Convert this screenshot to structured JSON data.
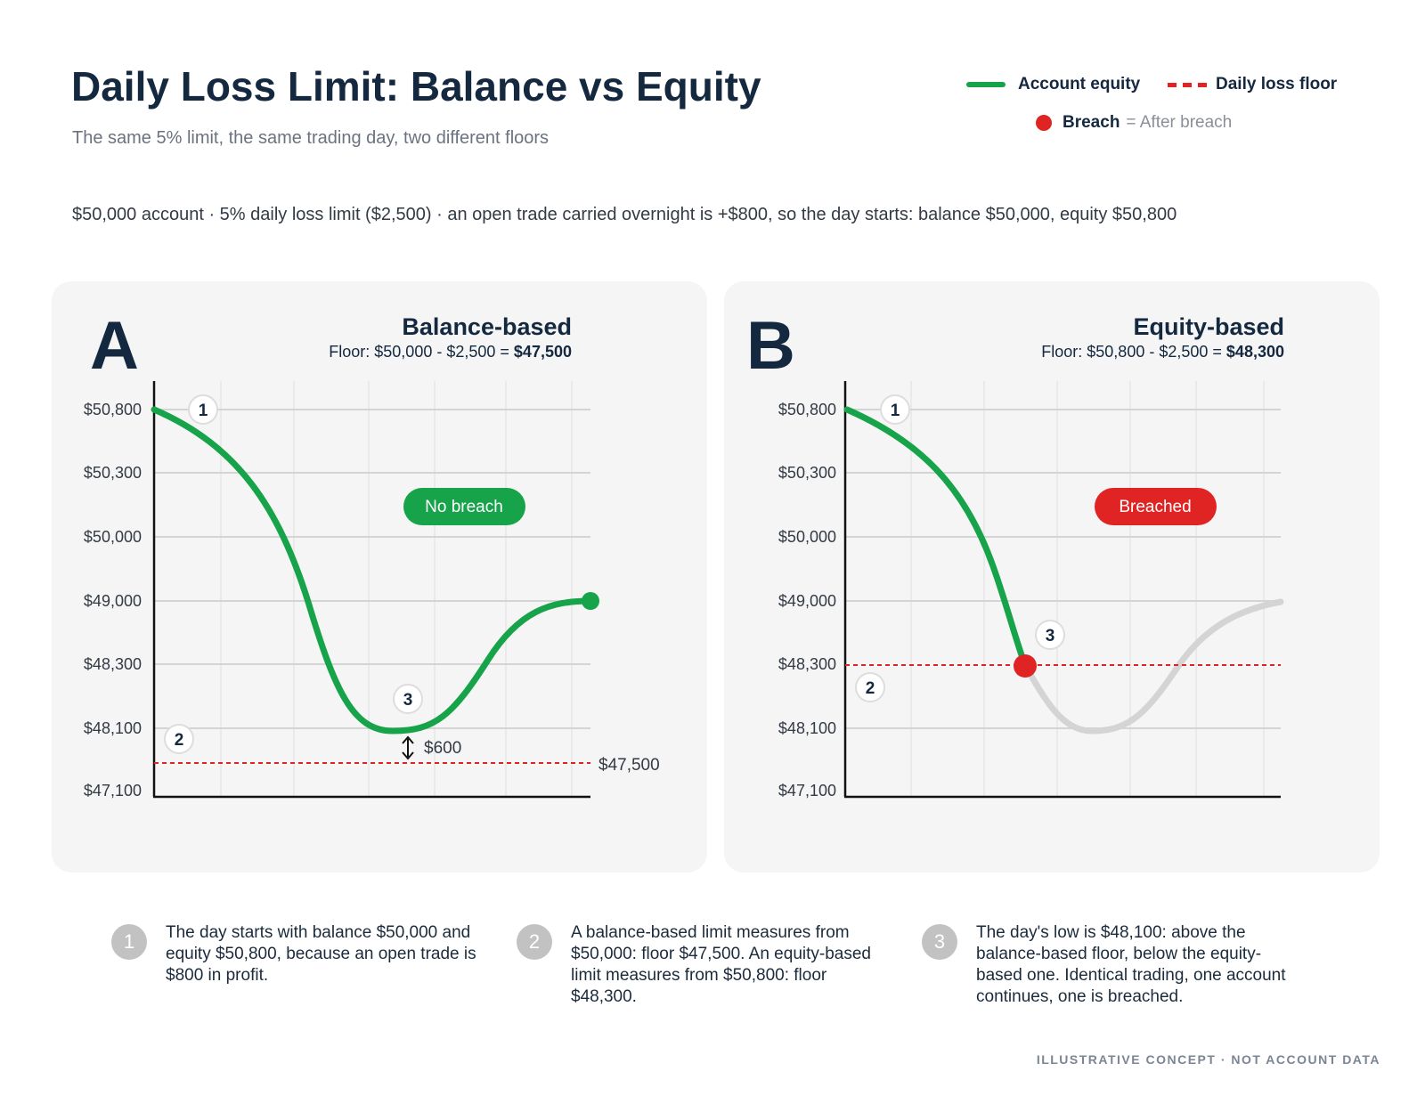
{
  "header": {
    "title": "Daily Loss Limit: Balance vs Equity",
    "subtitle": "The same 5% limit, the same trading day, two different floors",
    "context": "$50,000 account · 5% daily loss limit ($2,500) · an open trade carried overnight is +$800, so the day starts: balance $50,000, equity $50,800"
  },
  "legend": {
    "equity_label": "Account equity",
    "floor_label": "Daily loss floor",
    "breach_label": "Breach",
    "breach_note": "= After breach"
  },
  "colors": {
    "equity": "#16a34a",
    "floor": "#e02424",
    "breach": "#e02424",
    "after_breach": "#d4d4d4",
    "navy": "#14283f"
  },
  "chart_data": [
    {
      "type": "line",
      "panel_letter": "A",
      "title": "Balance-based",
      "subtitle_prefix": "Floor: $50,000 - $2,500 = ",
      "subtitle_value": "$47,500",
      "y_ticks": [
        "$50,800",
        "$50,300",
        "$50,000",
        "$49,000",
        "$48,300",
        "$48,100",
        "$47,100"
      ],
      "grid": true,
      "series": [
        {
          "values": [
            "$50,800",
            "$50,300",
            "$50,000",
            "$49,000",
            "$48,300",
            "$48,100",
            "$48,100",
            "$48,300",
            "$49,000"
          ]
        }
      ],
      "floor": {
        "value": "$47,500",
        "label": "$47,500"
      },
      "gap_label": "$600",
      "status": {
        "label": "No breach",
        "kind": "ok"
      },
      "markers": [
        "1",
        "2",
        "3"
      ]
    },
    {
      "type": "line",
      "panel_letter": "B",
      "title": "Equity-based",
      "subtitle_prefix": "Floor: $50,800 - $2,500 = ",
      "subtitle_value": "$48,300",
      "y_ticks": [
        "$50,800",
        "$50,300",
        "$50,000",
        "$49,000",
        "$48,300",
        "$48,100",
        "$47,100"
      ],
      "grid": true,
      "series": [
        {
          "values": [
            "$50,800",
            "$50,300",
            "$50,000",
            "$49,000",
            "$48,300"
          ]
        },
        {
          "values": [
            "$48,300",
            "$48,100",
            "$48,100",
            "$48,300",
            "$49,000"
          ]
        }
      ],
      "floor": {
        "value": "$48,300",
        "label": ""
      },
      "breach_point": "$48,300",
      "status": {
        "label": "Breached",
        "kind": "breach"
      },
      "markers": [
        "1",
        "2",
        "3"
      ]
    }
  ],
  "notes": [
    {
      "num": "1",
      "text": "The day starts with balance $50,000 and equity $50,800, because an open trade is $800 in profit."
    },
    {
      "num": "2",
      "text": "A balance-based limit measures from $50,000: floor $47,500. An equity-based limit measures from $50,800: floor $48,300."
    },
    {
      "num": "3",
      "text": "The day's low is $48,100: above the balance-based floor, below the equity-based one. Identical trading, one account continues, one is breached."
    }
  ],
  "footer": "ILLUSTRATIVE CONCEPT · NOT ACCOUNT DATA"
}
